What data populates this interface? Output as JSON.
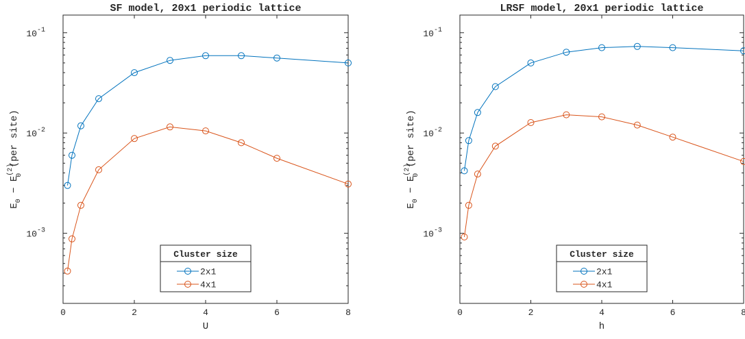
{
  "chart_data": [
    {
      "type": "line",
      "title": "SF model, 20x1 periodic lattice",
      "xlabel": "U",
      "ylabel_main": "E",
      "ylabel_sub": "0",
      "ylabel_minus": " − E",
      "ylabel_sup": "(2)",
      "ylabel_sub2": "0",
      "ylabel_tail": " (per site)",
      "xlim": [
        0,
        8
      ],
      "ylim": [
        0.0002,
        0.15
      ],
      "yscale": "log",
      "xticks": [
        "0",
        "2",
        "4",
        "6",
        "8"
      ],
      "yticks": [
        {
          "base": "10",
          "exp": "-3",
          "value": 0.001
        },
        {
          "base": "10",
          "exp": "-2",
          "value": 0.01
        },
        {
          "base": "10",
          "exp": "-1",
          "value": 0.1
        }
      ],
      "legend": {
        "title": "Cluster size",
        "position": "bottom-center"
      },
      "series": [
        {
          "name": "2x1",
          "color": "#0072BD",
          "x": [
            0.125,
            0.25,
            0.5,
            1,
            2,
            3,
            4,
            5,
            6,
            8
          ],
          "y": [
            0.003,
            0.006,
            0.0118,
            0.022,
            0.04,
            0.053,
            0.059,
            0.059,
            0.056,
            0.05
          ]
        },
        {
          "name": "4x1",
          "color": "#D95319",
          "x": [
            0.125,
            0.25,
            0.5,
            1,
            2,
            3,
            4,
            5,
            6,
            8
          ],
          "y": [
            0.00042,
            0.00088,
            0.0019,
            0.0043,
            0.0088,
            0.0115,
            0.0105,
            0.008,
            0.0056,
            0.0031
          ]
        }
      ]
    },
    {
      "type": "line",
      "title": "LRSF model, 20x1 periodic lattice",
      "xlabel": "h",
      "ylabel_main": "E",
      "ylabel_sub": "0",
      "ylabel_minus": " − E",
      "ylabel_sup": "(2)",
      "ylabel_sub2": "0",
      "ylabel_tail": " (per site)",
      "xlim": [
        0,
        8
      ],
      "ylim": [
        0.0002,
        0.15
      ],
      "yscale": "log",
      "xticks": [
        "0",
        "2",
        "4",
        "6",
        "8"
      ],
      "yticks": [
        {
          "base": "10",
          "exp": "-3",
          "value": 0.001
        },
        {
          "base": "10",
          "exp": "-2",
          "value": 0.01
        },
        {
          "base": "10",
          "exp": "-1",
          "value": 0.1
        }
      ],
      "legend": {
        "title": "Cluster size",
        "position": "bottom-center"
      },
      "series": [
        {
          "name": "2x1",
          "color": "#0072BD",
          "x": [
            0.125,
            0.25,
            0.5,
            1,
            2,
            3,
            4,
            5,
            6,
            8
          ],
          "y": [
            0.0042,
            0.0084,
            0.016,
            0.029,
            0.05,
            0.064,
            0.071,
            0.073,
            0.071,
            0.066
          ]
        },
        {
          "name": "4x1",
          "color": "#D95319",
          "x": [
            0.125,
            0.25,
            0.5,
            1,
            2,
            3,
            4,
            5,
            6,
            8
          ],
          "y": [
            0.00092,
            0.0019,
            0.0039,
            0.0074,
            0.0127,
            0.0152,
            0.0145,
            0.012,
            0.0091,
            0.0052
          ]
        }
      ]
    }
  ]
}
